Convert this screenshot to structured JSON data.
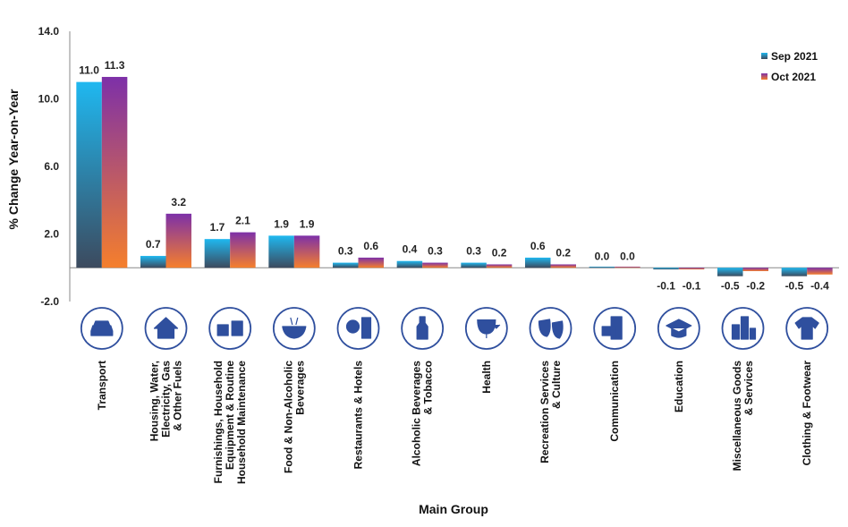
{
  "chart_data": {
    "type": "bar",
    "ylabel": "% Change Year-on-Year",
    "xlabel": "Main Group",
    "ylim": [
      -2.0,
      14.0
    ],
    "yticks": [
      "14.0",
      "10.0",
      "6.0",
      "2.0",
      "-2.0"
    ],
    "ytick_values": [
      14,
      10,
      6,
      2,
      -2
    ],
    "grid": false,
    "legend_position": "top-right",
    "categories": [
      [
        "Transport"
      ],
      [
        "Housing, Water,",
        "Electricity, Gas",
        "& Other Fuels"
      ],
      [
        "Furnishings, Household",
        "Equipment & Routine",
        "Household Maintenance"
      ],
      [
        "Food & Non-Alcoholic",
        "Beverages"
      ],
      [
        "Restaurants & Hotels"
      ],
      [
        "Alcoholic Beverages",
        "& Tobacco"
      ],
      [
        "Health"
      ],
      [
        "Recreation Services",
        "& Culture"
      ],
      [
        "Communication"
      ],
      [
        "Education"
      ],
      [
        "Miscellaneous Goods",
        "& Services"
      ],
      [
        "Clothing & Footwear"
      ]
    ],
    "category_icons": [
      "car-icon",
      "house-icon",
      "furniture-icon",
      "food-icon",
      "restaurant-icon",
      "bottle-icon",
      "health-icon",
      "theatre-masks-icon",
      "phone-icon",
      "graduation-cap-icon",
      "misc-goods-icon",
      "clothing-icon"
    ],
    "series": [
      {
        "name": "Sep 2021",
        "values": [
          11.0,
          0.7,
          1.7,
          1.9,
          0.3,
          0.4,
          0.3,
          0.6,
          0.0,
          -0.1,
          -0.5,
          -0.5
        ],
        "labels": [
          "11.0",
          "0.7",
          "1.7",
          "1.9",
          "0.3",
          "0.4",
          "0.3",
          "0.6",
          "0.0",
          "-0.1",
          "-0.5",
          "-0.5"
        ],
        "color_top": "#1fb8f0",
        "color_bottom": "#3c4a5e"
      },
      {
        "name": "Oct 2021",
        "values": [
          11.3,
          3.2,
          2.1,
          1.9,
          0.6,
          0.3,
          0.2,
          0.2,
          0.0,
          -0.1,
          -0.2,
          -0.4
        ],
        "labels": [
          "11.3",
          "3.2",
          "2.1",
          "1.9",
          "0.6",
          "0.3",
          "0.2",
          "0.2",
          "0.0",
          "-0.1",
          "-0.2",
          "-0.4"
        ],
        "color_top": "#7d30a8",
        "color_bottom": "#f57f2c"
      }
    ]
  }
}
